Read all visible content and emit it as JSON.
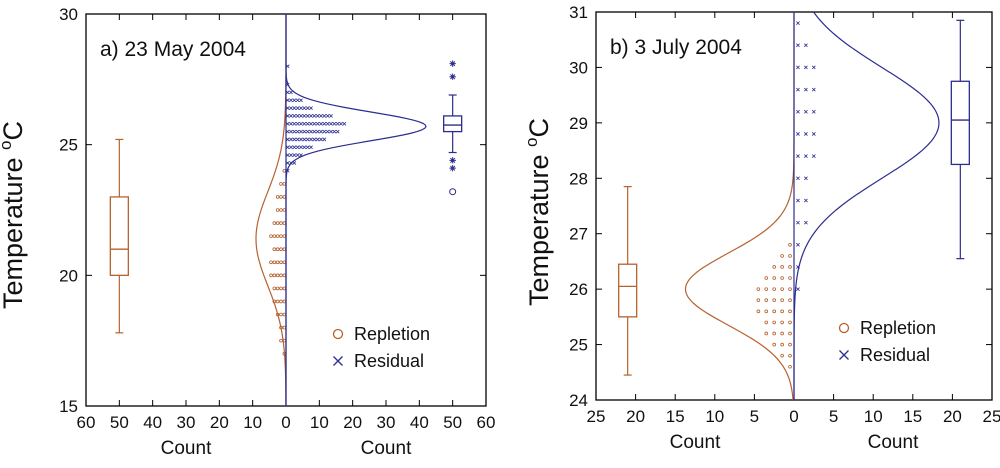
{
  "colors": {
    "repletion": "#b5622e",
    "residual": "#2b2d8f",
    "axis": "#000000"
  },
  "chart_data": [
    {
      "type": "scatter",
      "panel_label": "a) 23 May 2004",
      "ylabel": "Temperature °C",
      "ylabel_main": "Temperature ",
      "ylabel_sup": "o",
      "ylabel_unit": "C",
      "ylim": [
        15,
        30
      ],
      "yticks": [
        15,
        20,
        25,
        30
      ],
      "xlim": [
        -60,
        60
      ],
      "xticks": [
        -60,
        -50,
        -40,
        -30,
        -20,
        -10,
        0,
        10,
        20,
        30,
        40,
        50,
        60
      ],
      "xtick_labels": [
        "60",
        "50",
        "40",
        "30",
        "20",
        "10",
        "0",
        "10",
        "20",
        "30",
        "40",
        "50",
        "60"
      ],
      "xlabel_left": "Count",
      "xlabel_right": "Count",
      "legend": {
        "position": "bottom-right",
        "entries": [
          {
            "name": "Repletion",
            "marker": "o"
          },
          {
            "name": "Residual",
            "marker": "x"
          }
        ]
      },
      "series": [
        {
          "name": "Repletion",
          "side": "left",
          "curve": {
            "peak_count": 9,
            "mean": 21.4,
            "sd": 1.8
          },
          "histogram": [
            {
              "temp": 17.0,
              "count": 1
            },
            {
              "temp": 17.5,
              "count": 2
            },
            {
              "temp": 18.0,
              "count": 2
            },
            {
              "temp": 18.5,
              "count": 3
            },
            {
              "temp": 19.0,
              "count": 4
            },
            {
              "temp": 19.5,
              "count": 4
            },
            {
              "temp": 20.0,
              "count": 5
            },
            {
              "temp": 20.5,
              "count": 5
            },
            {
              "temp": 21.0,
              "count": 4
            },
            {
              "temp": 21.5,
              "count": 5
            },
            {
              "temp": 22.0,
              "count": 4
            },
            {
              "temp": 22.5,
              "count": 3
            },
            {
              "temp": 23.0,
              "count": 3
            },
            {
              "temp": 23.5,
              "count": 2
            },
            {
              "temp": 24.0,
              "count": 1
            }
          ],
          "boxplot": {
            "x": -50,
            "whisker_low": 17.8,
            "q1": 20.0,
            "median": 21.0,
            "q3": 23.0,
            "whisker_high": 25.2,
            "outliers": []
          }
        },
        {
          "name": "Residual",
          "side": "right",
          "curve": {
            "peak_count": 42,
            "mean": 25.7,
            "sd": 0.55
          },
          "histogram": [
            {
              "temp": 24.0,
              "count": 1
            },
            {
              "temp": 24.3,
              "count": 3
            },
            {
              "temp": 24.6,
              "count": 5
            },
            {
              "temp": 24.9,
              "count": 8
            },
            {
              "temp": 25.2,
              "count": 12
            },
            {
              "temp": 25.5,
              "count": 16
            },
            {
              "temp": 25.8,
              "count": 18
            },
            {
              "temp": 26.1,
              "count": 14
            },
            {
              "temp": 26.4,
              "count": 8
            },
            {
              "temp": 26.7,
              "count": 5
            },
            {
              "temp": 27.0,
              "count": 2
            },
            {
              "temp": 27.3,
              "count": 1
            },
            {
              "temp": 28.0,
              "count": 1
            }
          ],
          "boxplot": {
            "x": 50,
            "whisker_low": 24.7,
            "q1": 25.5,
            "median": 25.75,
            "q3": 26.1,
            "whisker_high": 26.9,
            "outliers": [
              {
                "y": 28.1,
                "marker": "*"
              },
              {
                "y": 27.6,
                "marker": "*"
              },
              {
                "y": 24.4,
                "marker": "*"
              },
              {
                "y": 24.1,
                "marker": "*"
              },
              {
                "y": 23.2,
                "marker": "o"
              }
            ]
          }
        }
      ]
    },
    {
      "type": "scatter",
      "panel_label": "b) 3 July 2004",
      "ylabel": "Temperature °C",
      "ylabel_main": "Temperature ",
      "ylabel_sup": "o",
      "ylabel_unit": "C",
      "ylim": [
        24,
        31
      ],
      "yticks": [
        24,
        25,
        26,
        27,
        28,
        29,
        30,
        31
      ],
      "xlim": [
        -25,
        25
      ],
      "xticks": [
        -25,
        -20,
        -15,
        -10,
        -5,
        0,
        5,
        10,
        15,
        20,
        25
      ],
      "xtick_labels": [
        "25",
        "20",
        "15",
        "10",
        "5",
        "0",
        "5",
        "10",
        "15",
        "20",
        "25"
      ],
      "xlabel_left": "Count",
      "xlabel_right": "Count",
      "legend": {
        "position": "bottom-right",
        "entries": [
          {
            "name": "Repletion",
            "marker": "o"
          },
          {
            "name": "Residual",
            "marker": "x"
          }
        ]
      },
      "series": [
        {
          "name": "Repletion",
          "side": "left",
          "curve": {
            "peak_count": 13.7,
            "mean": 26.0,
            "sd": 0.65
          },
          "histogram": [
            {
              "temp": 24.6,
              "count": 1
            },
            {
              "temp": 24.8,
              "count": 2
            },
            {
              "temp": 25.0,
              "count": 3
            },
            {
              "temp": 25.2,
              "count": 4
            },
            {
              "temp": 25.4,
              "count": 4
            },
            {
              "temp": 25.6,
              "count": 5
            },
            {
              "temp": 25.8,
              "count": 5
            },
            {
              "temp": 26.0,
              "count": 5
            },
            {
              "temp": 26.2,
              "count": 4
            },
            {
              "temp": 26.4,
              "count": 3
            },
            {
              "temp": 26.6,
              "count": 2
            },
            {
              "temp": 26.8,
              "count": 1
            }
          ],
          "boxplot": {
            "x": -21,
            "whisker_low": 24.45,
            "q1": 25.5,
            "median": 26.05,
            "q3": 26.45,
            "whisker_high": 27.85,
            "outliers": []
          }
        },
        {
          "name": "Residual",
          "side": "right",
          "curve": {
            "peak_count": 18.3,
            "mean": 29.0,
            "sd": 1.0
          },
          "histogram": [
            {
              "temp": 26.0,
              "count": 1
            },
            {
              "temp": 26.4,
              "count": 1
            },
            {
              "temp": 26.8,
              "count": 1
            },
            {
              "temp": 27.2,
              "count": 2
            },
            {
              "temp": 27.6,
              "count": 2
            },
            {
              "temp": 28.0,
              "count": 2
            },
            {
              "temp": 28.4,
              "count": 3
            },
            {
              "temp": 28.8,
              "count": 3
            },
            {
              "temp": 29.2,
              "count": 3
            },
            {
              "temp": 29.6,
              "count": 3
            },
            {
              "temp": 30.0,
              "count": 3
            },
            {
              "temp": 30.4,
              "count": 2
            },
            {
              "temp": 30.8,
              "count": 1
            }
          ],
          "boxplot": {
            "x": 21,
            "whisker_low": 26.55,
            "q1": 28.25,
            "median": 29.05,
            "q3": 29.75,
            "whisker_high": 30.85,
            "outliers": []
          }
        }
      ]
    }
  ]
}
